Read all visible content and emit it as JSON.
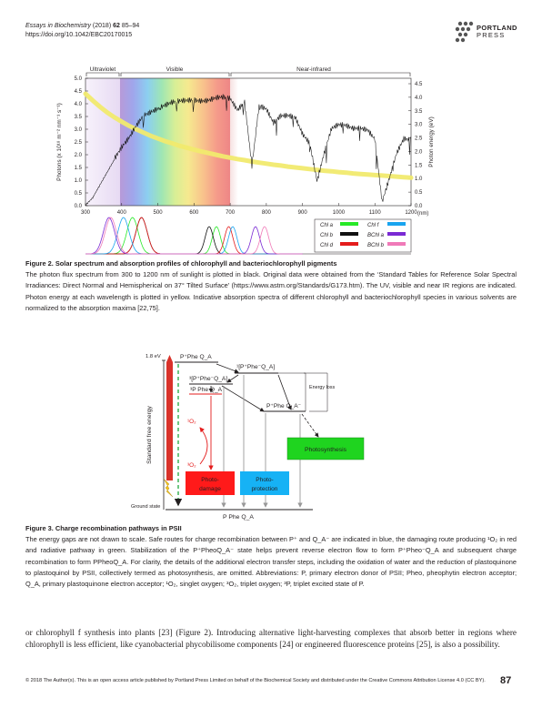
{
  "header": {
    "journal": "Essays in Biochemistry",
    "year": "(2018)",
    "volume": "62",
    "pages": "85–94",
    "doi": "https://doi.org/10.1042/EBC20170015"
  },
  "logo": {
    "line1": "PORTLAND",
    "line2": "PRESS"
  },
  "figure2": {
    "regions": [
      "Ultraviolet",
      "Visible",
      "Near-infrared"
    ],
    "ylabel_left": "Photons (x 10¹⁸ m⁻² nm⁻¹ s⁻¹)",
    "ylabel_right": "Photon energy (eV)",
    "xunit": "(nm)",
    "legend": [
      {
        "label": "Chl a",
        "color": "#27e927"
      },
      {
        "label": "Chl f",
        "color": "#19a4ef"
      },
      {
        "label": "Chl b",
        "color": "#111111"
      },
      {
        "label": "BChl a",
        "color": "#7a2ad4"
      },
      {
        "label": "Chl d",
        "color": "#e41c1c"
      },
      {
        "label": "BChl b",
        "color": "#f07ab8"
      }
    ],
    "caption_title": "Figure 2. Solar spectrum and absorption profiles of chlorophyll and bacteriochlorophyll pigments",
    "caption_text": "The photon flux spectrum from 300 to 1200 nm of sunlight is plotted in black. Original data were obtained from the ‘Standard Tables for Reference Solar Spectral Irradiances: Direct Normal and Hemispherical on 37° Tilted Surface’ (",
    "caption_link": "https://www.astm.org/Standards/G173.htm",
    "caption_text2": "). The UV, visible and near IR regions are indicated. Photon energy at each wavelength is plotted in yellow. Indicative absorption spectra of different chlorophyll and bacteriochlorophyll species in various solvents are normalized to the absorption maxima [22,75]."
  },
  "chart_data": {
    "type": "line",
    "x": [
      300,
      320,
      340,
      360,
      380,
      400,
      420,
      440,
      460,
      480,
      500,
      520,
      540,
      560,
      580,
      600,
      620,
      640,
      660,
      680,
      700,
      720,
      740,
      760,
      780,
      800,
      820,
      840,
      860,
      880,
      900,
      920,
      940,
      960,
      980,
      1000,
      1020,
      1040,
      1060,
      1080,
      1100,
      1120,
      1140,
      1160,
      1180,
      1200
    ],
    "series": [
      {
        "values": [
          0.02,
          0.3,
          0.8,
          1.3,
          1.8,
          2.3,
          2.7,
          3.2,
          3.6,
          3.7,
          3.8,
          3.9,
          4.0,
          4.05,
          4.1,
          4.15,
          4.15,
          4.2,
          4.3,
          4.3,
          4.2,
          3.7,
          4.0,
          1.5,
          3.9,
          3.8,
          3.3,
          3.6,
          3.6,
          3.5,
          2.8,
          2.4,
          0.9,
          2.0,
          3.0,
          3.2,
          3.2,
          3.1,
          3.1,
          3.0,
          2.6,
          0.1,
          1.0,
          2.0,
          2.6,
          2.6
        ]
      },
      {
        "values": [
          4.13,
          3.88,
          3.65,
          3.44,
          3.26,
          3.1,
          2.95,
          2.82,
          2.7,
          2.58,
          2.48,
          2.38,
          2.3,
          2.21,
          2.14,
          2.07,
          2.0,
          1.94,
          1.88,
          1.82,
          1.77,
          1.72,
          1.68,
          1.63,
          1.59,
          1.55,
          1.51,
          1.48,
          1.44,
          1.41,
          1.38,
          1.35,
          1.32,
          1.29,
          1.27,
          1.24,
          1.22,
          1.19,
          1.17,
          1.15,
          1.13,
          1.11,
          1.09,
          1.07,
          1.05,
          1.03
        ]
      }
    ],
    "xticks": [
      300,
      400,
      500,
      600,
      700,
      800,
      900,
      1000,
      1100,
      1200
    ],
    "yticks_left": [
      "0.0",
      "0.5",
      "1.0",
      "1.5",
      "2.0",
      "2.5",
      "3.0",
      "3.5",
      "4.0",
      "4.5",
      "5.0"
    ],
    "yticks_right": [
      "0.0",
      "0.5",
      "1.0",
      "1.5",
      "2.0",
      "2.5",
      "3.0",
      "3.5",
      "4.0",
      "4.5"
    ],
    "xlim": [
      300,
      1200
    ],
    "ylim": [
      0,
      5
    ],
    "ylim_right": [
      0,
      4.5
    ],
    "absorption": [
      {
        "name": "Chl a",
        "peaks": [
          430,
          662
        ]
      },
      {
        "name": "Chl b",
        "peaks": [
          455,
          642
        ]
      },
      {
        "name": "Chl d",
        "peaks": [
          455,
          696
        ]
      },
      {
        "name": "Chl f",
        "peaks": [
          405,
          707
        ]
      },
      {
        "name": "BChl a",
        "peaks": [
          365,
          770
        ]
      },
      {
        "name": "BChl b",
        "peaks": [
          370,
          795
        ]
      }
    ]
  },
  "figure3": {
    "level_top": "1.8 eV",
    "state_top": "P⁺Phe Q_A",
    "state_triplet_rp": "³[P⁺Phe⁻Q_A]",
    "state_singlet_rp": "¹[P⁺Phe⁻Q_A]",
    "state_3p": "³P Phe Q_A",
    "state_stable": "P⁺Phe Q_A⁻",
    "energy_loss": "Energy loss",
    "singlet_o2": "¹O₂",
    "triplet_o2": "³O₂",
    "y_axis": "Standard free energy",
    "ground_label": "Ground state",
    "ground_state": "P Phe Q_A",
    "box_photosynthesis": "Photosynthesis",
    "box_damage_1": "Photo-",
    "box_damage_2": "damage",
    "box_protection_1": "Photo-",
    "box_protection_2": "protection",
    "colors": {
      "damage": "#ff1a1a",
      "protection": "#16b2f5",
      "photosynthesis": "#1fd41f",
      "green_path": "#2fae4a"
    },
    "caption_title": "Figure 3. Charge recombination pathways in PSII",
    "caption_text": "The energy gaps are not drawn to scale. Safe routes for charge recombination between P⁺ and Q_A⁻ are indicated in blue, the damaging route producing ¹O₂ in red and radiative pathway in green. Stabilization of the P⁺PheoQ_A⁻ state helps prevent reverse electron flow to form P⁺Pheo⁻Q_A and subsequent charge recombination to form PPheoQ_A. For clarity, the details of the additional electron transfer steps, including the oxidation of water and the reduction of plastoquinone to plastoquinol by PSII, collectively termed as photosynthesis, are omitted. Abbreviations: P, primary electron donor of PSII; Pheo, pheophytin electron acceptor; Q_A, primary plastoquinone electron acceptor; ¹O₂, singlet oxygen; ³O₂, triplet oxygen; ³P, triplet excited state of P."
  },
  "body": "or chlorophyll f synthesis into plants [23] (Figure 2). Introducing alternative light-harvesting complexes that absorb better in regions where chlorophyll is less efficient, like cyanobacterial phycobilisome components [24] or engineered fluorescence proteins [25], is also a possibility.",
  "footer": "© 2018 The Author(s). This is an open access article published by Portland Press Limited on behalf of the Biochemical Society and distributed under the Creative Commons Attribution License 4.0 (CC BY).",
  "page_number": "87"
}
